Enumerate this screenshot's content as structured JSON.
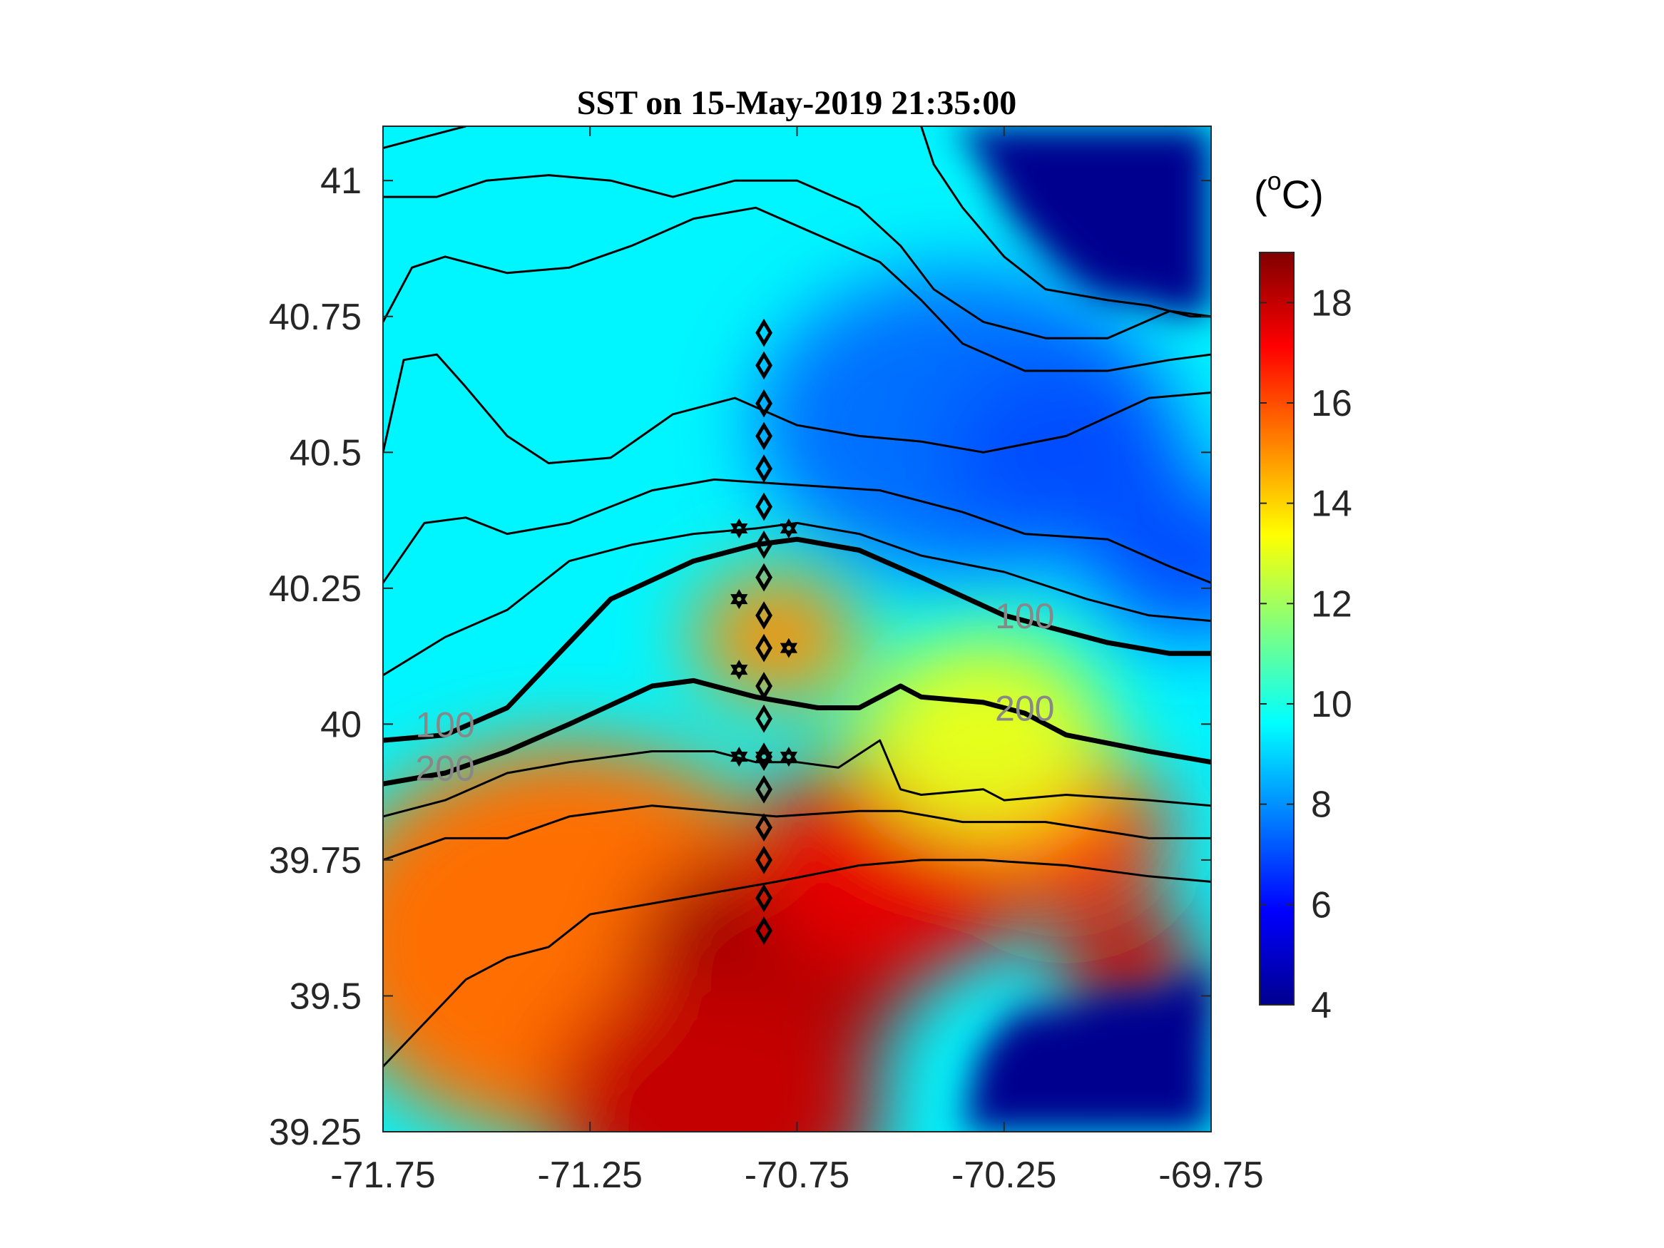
{
  "chart_data": {
    "type": "heatmap",
    "title": "SST on 15-May-2019 21:35:00",
    "xlabel": "",
    "ylabel": "",
    "xlim": [
      -71.75,
      -69.75
    ],
    "ylim": [
      39.25,
      41.1
    ],
    "x_ticks": [
      "-71.75",
      "-71.25",
      "-70.75",
      "-70.25",
      "-69.75"
    ],
    "y_ticks": [
      "39.25",
      "39.5",
      "39.75",
      "40",
      "40.25",
      "40.5",
      "40.75",
      "41"
    ],
    "colorbar": {
      "unit": "(oC)",
      "unit_base": "(",
      "unit_sup": "o",
      "unit_tail": "C)",
      "range": [
        4,
        19
      ],
      "ticks": [
        "4",
        "6",
        "8",
        "10",
        "12",
        "14",
        "16",
        "18"
      ],
      "colormap": "jet"
    },
    "contour_labels": [
      {
        "text": "100",
        "lon": -71.6,
        "lat": 40.0
      },
      {
        "text": "200",
        "lon": -71.6,
        "lat": 39.92
      },
      {
        "text": "100",
        "lon": -70.2,
        "lat": 40.2
      },
      {
        "text": "200",
        "lon": -70.2,
        "lat": 40.03
      }
    ],
    "depth_contours": [
      {
        "name": "100",
        "bold": true,
        "points": [
          [
            -71.75,
            39.97
          ],
          [
            -71.6,
            39.98
          ],
          [
            -71.45,
            40.03
          ],
          [
            -71.3,
            40.15
          ],
          [
            -71.2,
            40.23
          ],
          [
            -71.0,
            40.3
          ],
          [
            -70.85,
            40.33
          ],
          [
            -70.75,
            40.34
          ],
          [
            -70.6,
            40.32
          ],
          [
            -70.45,
            40.27
          ],
          [
            -70.25,
            40.2
          ],
          [
            -70.0,
            40.15
          ],
          [
            -69.85,
            40.13
          ],
          [
            -69.75,
            40.13
          ]
        ]
      },
      {
        "name": "200",
        "bold": true,
        "points": [
          [
            -71.75,
            39.89
          ],
          [
            -71.6,
            39.91
          ],
          [
            -71.45,
            39.95
          ],
          [
            -71.3,
            40.0
          ],
          [
            -71.1,
            40.07
          ],
          [
            -71.0,
            40.08
          ],
          [
            -70.85,
            40.05
          ],
          [
            -70.7,
            40.03
          ],
          [
            -70.6,
            40.03
          ],
          [
            -70.5,
            40.07
          ],
          [
            -70.45,
            40.05
          ],
          [
            -70.3,
            40.04
          ],
          [
            -70.2,
            40.02
          ],
          [
            -70.1,
            39.98
          ],
          [
            -69.9,
            39.95
          ],
          [
            -69.75,
            39.93
          ]
        ]
      },
      {
        "name": "c1",
        "bold": false,
        "points": [
          [
            -71.75,
            40.26
          ],
          [
            -71.65,
            40.37
          ],
          [
            -71.55,
            40.38
          ],
          [
            -71.45,
            40.35
          ],
          [
            -71.3,
            40.37
          ],
          [
            -71.1,
            40.43
          ],
          [
            -70.95,
            40.45
          ],
          [
            -70.75,
            40.44
          ],
          [
            -70.55,
            40.43
          ],
          [
            -70.35,
            40.39
          ],
          [
            -70.2,
            40.35
          ],
          [
            -70.0,
            40.34
          ],
          [
            -69.85,
            40.29
          ],
          [
            -69.75,
            40.26
          ]
        ]
      },
      {
        "name": "c2",
        "bold": false,
        "points": [
          [
            -71.75,
            40.09
          ],
          [
            -71.6,
            40.16
          ],
          [
            -71.45,
            40.21
          ],
          [
            -71.3,
            40.3
          ],
          [
            -71.15,
            40.33
          ],
          [
            -71.0,
            40.35
          ],
          [
            -70.85,
            40.36
          ],
          [
            -70.75,
            40.37
          ],
          [
            -70.6,
            40.35
          ],
          [
            -70.45,
            40.31
          ],
          [
            -70.25,
            40.28
          ],
          [
            -70.05,
            40.23
          ],
          [
            -69.9,
            40.2
          ],
          [
            -69.75,
            40.19
          ]
        ]
      },
      {
        "name": "c3",
        "bold": false,
        "points": [
          [
            -71.75,
            40.5
          ],
          [
            -71.7,
            40.67
          ],
          [
            -71.62,
            40.68
          ],
          [
            -71.55,
            40.62
          ],
          [
            -71.45,
            40.53
          ],
          [
            -71.35,
            40.48
          ],
          [
            -71.2,
            40.49
          ],
          [
            -71.05,
            40.57
          ],
          [
            -70.9,
            40.6
          ],
          [
            -70.75,
            40.55
          ],
          [
            -70.6,
            40.53
          ],
          [
            -70.45,
            40.52
          ],
          [
            -70.3,
            40.5
          ],
          [
            -70.1,
            40.53
          ],
          [
            -69.9,
            40.6
          ],
          [
            -69.75,
            40.61
          ]
        ]
      },
      {
        "name": "c4",
        "bold": false,
        "points": [
          [
            -71.75,
            40.74
          ],
          [
            -71.68,
            40.84
          ],
          [
            -71.6,
            40.86
          ],
          [
            -71.45,
            40.83
          ],
          [
            -71.3,
            40.84
          ],
          [
            -71.15,
            40.88
          ],
          [
            -71.0,
            40.93
          ],
          [
            -70.85,
            40.95
          ],
          [
            -70.7,
            40.9
          ],
          [
            -70.55,
            40.85
          ],
          [
            -70.45,
            40.78
          ],
          [
            -70.35,
            40.7
          ],
          [
            -70.2,
            40.65
          ],
          [
            -70.0,
            40.65
          ],
          [
            -69.85,
            40.67
          ],
          [
            -69.75,
            40.68
          ]
        ]
      },
      {
        "name": "c5",
        "bold": false,
        "points": [
          [
            -71.75,
            40.97
          ],
          [
            -71.62,
            40.97
          ],
          [
            -71.5,
            41.0
          ],
          [
            -71.35,
            41.01
          ],
          [
            -71.2,
            41.0
          ],
          [
            -71.05,
            40.97
          ],
          [
            -70.9,
            41.0
          ],
          [
            -70.75,
            41.0
          ],
          [
            -70.6,
            40.95
          ],
          [
            -70.5,
            40.88
          ],
          [
            -70.42,
            40.8
          ],
          [
            -70.3,
            40.74
          ],
          [
            -70.15,
            40.71
          ],
          [
            -70.0,
            40.71
          ],
          [
            -69.85,
            40.76
          ],
          [
            -69.75,
            40.75
          ]
        ]
      },
      {
        "name": "c6",
        "bold": false,
        "points": [
          [
            -71.75,
            41.06
          ],
          [
            -71.65,
            41.08
          ],
          [
            -71.55,
            41.1
          ]
        ]
      },
      {
        "name": "c7",
        "bold": false,
        "points": [
          [
            -70.45,
            41.1
          ],
          [
            -70.42,
            41.03
          ],
          [
            -70.35,
            40.95
          ],
          [
            -70.25,
            40.86
          ],
          [
            -70.15,
            40.8
          ],
          [
            -70.0,
            40.78
          ],
          [
            -69.9,
            40.77
          ],
          [
            -69.8,
            40.75
          ],
          [
            -69.75,
            40.75
          ]
        ]
      },
      {
        "name": "c8",
        "bold": false,
        "points": [
          [
            -71.75,
            39.83
          ],
          [
            -71.6,
            39.86
          ],
          [
            -71.45,
            39.91
          ],
          [
            -71.3,
            39.93
          ],
          [
            -71.1,
            39.95
          ],
          [
            -70.95,
            39.95
          ],
          [
            -70.85,
            39.93
          ],
          [
            -70.75,
            39.93
          ],
          [
            -70.65,
            39.92
          ],
          [
            -70.55,
            39.97
          ],
          [
            -70.5,
            39.88
          ],
          [
            -70.45,
            39.87
          ],
          [
            -70.3,
            39.88
          ],
          [
            -70.25,
            39.86
          ],
          [
            -70.1,
            39.87
          ],
          [
            -69.9,
            39.86
          ],
          [
            -69.75,
            39.85
          ]
        ]
      },
      {
        "name": "c9",
        "bold": false,
        "points": [
          [
            -71.75,
            39.75
          ],
          [
            -71.6,
            39.79
          ],
          [
            -71.45,
            39.79
          ],
          [
            -71.3,
            39.83
          ],
          [
            -71.1,
            39.85
          ],
          [
            -70.95,
            39.84
          ],
          [
            -70.8,
            39.83
          ],
          [
            -70.6,
            39.84
          ],
          [
            -70.5,
            39.84
          ],
          [
            -70.35,
            39.82
          ],
          [
            -70.15,
            39.82
          ],
          [
            -69.9,
            39.79
          ],
          [
            -69.75,
            39.79
          ]
        ]
      },
      {
        "name": "c10",
        "bold": false,
        "points": [
          [
            -71.75,
            39.37
          ],
          [
            -71.65,
            39.45
          ],
          [
            -71.55,
            39.53
          ],
          [
            -71.45,
            39.57
          ],
          [
            -71.35,
            39.59
          ],
          [
            -71.25,
            39.65
          ],
          [
            -71.1,
            39.67
          ],
          [
            -70.95,
            39.69
          ],
          [
            -70.8,
            39.71
          ],
          [
            -70.6,
            39.74
          ],
          [
            -70.45,
            39.75
          ],
          [
            -70.3,
            39.75
          ],
          [
            -70.1,
            39.74
          ],
          [
            -69.9,
            39.72
          ],
          [
            -69.75,
            39.71
          ]
        ]
      }
    ],
    "station_line": {
      "marker": "diamond",
      "lon": -70.83,
      "lat": [
        40.72,
        40.66,
        40.59,
        40.53,
        40.47,
        40.4,
        40.33,
        40.27,
        40.2,
        40.14,
        40.07,
        40.01,
        39.94,
        39.88,
        39.81,
        39.75,
        39.68,
        39.62
      ]
    },
    "extra_stations": {
      "marker": "hexagram",
      "points": [
        [
          -70.89,
          40.36
        ],
        [
          -70.77,
          40.36
        ],
        [
          -70.89,
          40.23
        ],
        [
          -70.77,
          40.14
        ],
        [
          -70.89,
          40.1
        ],
        [
          -70.89,
          39.94
        ],
        [
          -70.83,
          39.94
        ],
        [
          -70.77,
          39.94
        ]
      ]
    },
    "sst_features": {
      "background_temp": 9.5,
      "land_temp": 4,
      "warm_patches": [
        {
          "lon": -71.3,
          "lat": 39.6,
          "radius": 0.6,
          "temp": 15.5
        },
        {
          "lon": -70.8,
          "lat": 39.57,
          "radius": 0.35,
          "temp": 18.5
        },
        {
          "lon": -70.95,
          "lat": 39.3,
          "radius": 0.4,
          "temp": 18.0
        },
        {
          "lon": -70.5,
          "lat": 39.75,
          "radius": 0.35,
          "temp": 17.5
        },
        {
          "lon": -70.1,
          "lat": 39.8,
          "radius": 0.25,
          "temp": 16.5
        },
        {
          "lon": -70.8,
          "lat": 40.16,
          "radius": 0.2,
          "temp": 15.0
        },
        {
          "lon": -70.3,
          "lat": 39.98,
          "radius": 0.3,
          "temp": 13.0
        },
        {
          "lon": -69.95,
          "lat": 39.55,
          "radius": 0.18,
          "temp": 18.0
        }
      ],
      "cold_patches": [
        {
          "lon": -70.35,
          "lat": 40.55,
          "radius": 0.5,
          "temp": 7.5
        },
        {
          "lon": -70.1,
          "lat": 40.5,
          "radius": 0.3,
          "temp": 7.0
        },
        {
          "lon": -69.8,
          "lat": 40.3,
          "radius": 0.25,
          "temp": 7.0
        }
      ]
    }
  }
}
